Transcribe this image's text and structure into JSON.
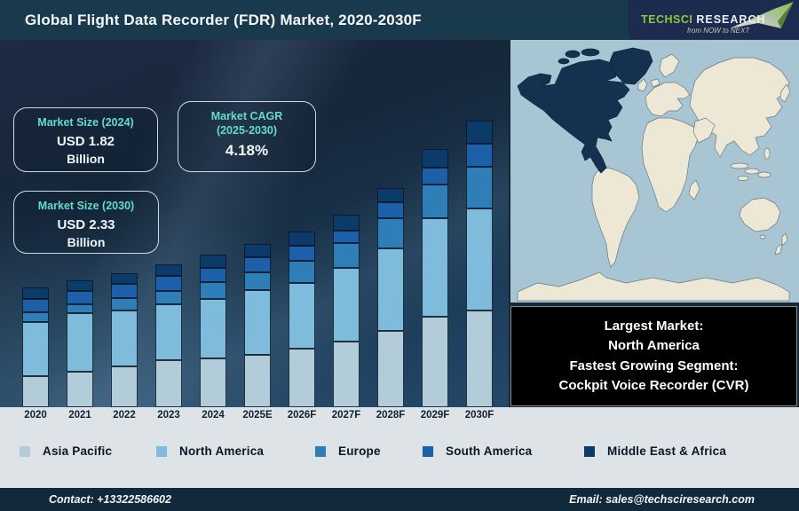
{
  "header": {
    "title": "Global Flight Data Recorder (FDR) Market, 2020-2030F",
    "logo": {
      "brand_green": "TechSci",
      "brand_white": "Research",
      "tagline": "from NOW to NEXT",
      "green": "#8dc63f",
      "navy": "#1d2b4e"
    }
  },
  "info_boxes": {
    "size2024": {
      "heading": "Market Size (2024)",
      "value": "USD 1.82",
      "unit": "Billion"
    },
    "cagr": {
      "heading_top": "Market CAGR",
      "heading_bottom": "(2025-2030)",
      "value": "4.18%"
    },
    "size2030": {
      "heading": "Market Size (2030)",
      "value": "USD 2.33",
      "unit": "Billion"
    }
  },
  "chart_data": {
    "type": "bar",
    "stacked": true,
    "title": "Global Flight Data Recorder (FDR) Market, 2020-2030F",
    "categories": [
      "2020",
      "2021",
      "2022",
      "2023",
      "2024",
      "2025E",
      "2026F",
      "2027F",
      "2028F",
      "2029F",
      "2030F"
    ],
    "series": [
      {
        "name": "Asia Pacific",
        "color": "#b2cdd9",
        "values": [
          35,
          40,
          46,
          53,
          55,
          59,
          66,
          74,
          86,
          102,
          109
        ]
      },
      {
        "name": "North America",
        "color": "#7fbcdc",
        "values": [
          61,
          66,
          63,
          63,
          67,
          73,
          74,
          83,
          93,
          111,
          115
        ]
      },
      {
        "name": "Europe",
        "color": "#2f7eb7",
        "values": [
          11,
          10,
          14,
          15,
          19,
          20,
          25,
          28,
          34,
          38,
          47
        ]
      },
      {
        "name": "South America",
        "color": "#1d5fa8",
        "values": [
          15,
          15,
          16,
          17,
          16,
          17,
          17,
          14,
          18,
          19,
          26
        ]
      },
      {
        "name": "Middle East & Africa",
        "color": "#0c3a69",
        "values": [
          13,
          12,
          12,
          13,
          15,
          15,
          16,
          18,
          16,
          21,
          26
        ]
      }
    ],
    "units": "relative stacked-bar height (no numeric axis shown)",
    "known_totals": {
      "2024": "USD 1.82 Billion",
      "2030": "USD 2.33 Billion",
      "cagr_2025_2030": "4.18%"
    },
    "legend_position": "bottom",
    "grid": false
  },
  "map": {
    "highlight_region": "North America",
    "ocean_color": "#a8c5d4",
    "land_color": "#ece8d5",
    "highlight_color": "#16304f"
  },
  "callout": {
    "lines": [
      "Largest Market:",
      "North America",
      "Fastest Growing Segment:",
      "Cockpit Voice Recorder (CVR)"
    ]
  },
  "footer": {
    "contact": "Contact: +13322586602",
    "email": "Email: sales@techsciresearch.com"
  }
}
